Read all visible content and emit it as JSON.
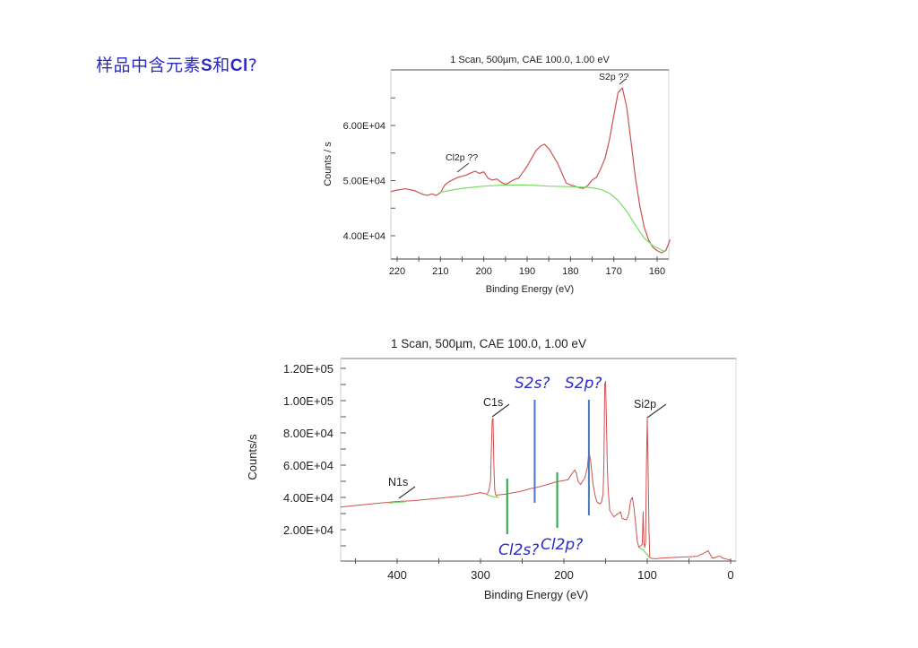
{
  "page": {
    "title_prefix": "样品中含元素",
    "title_s": "S",
    "title_mid": "和",
    "title_cl": "Cl",
    "title_suffix": "?"
  },
  "colors": {
    "title": "#2b2bc8",
    "spectrum": "#d05050",
    "background_fit": "#77dd66",
    "annotation_blue_line": "#4a78b8",
    "annotation_green_line": "#22aa44",
    "annotation_text": "#2a2ad0"
  },
  "chart_data": [
    {
      "type": "line",
      "title": "1 Scan,  500µm,  CAE 100.0,  1.00 eV",
      "xlabel": "Binding Energy (eV)",
      "ylabel": "Counts / s",
      "xlim": [
        221.5,
        157
      ],
      "ylim": [
        36000,
        69000
      ],
      "x_ticks": [
        220,
        210,
        200,
        190,
        180,
        170,
        160
      ],
      "y_ticks": [
        "4.00E+04",
        "5.00E+04",
        "6.00E+04"
      ],
      "grid": false,
      "annotations": [
        {
          "label": "Cl2p ??",
          "x": 203
        },
        {
          "label": "S2p ??",
          "x": 168
        }
      ],
      "series": [
        {
          "name": "spectrum",
          "color": "#d05050",
          "x": [
            221.5,
            220,
            218,
            216,
            215,
            214,
            213,
            212,
            211,
            210,
            209,
            208,
            206,
            204,
            203,
            202,
            201,
            200,
            199,
            198,
            197,
            196,
            195,
            194,
            193,
            192,
            191,
            190,
            189,
            188,
            187,
            186,
            185,
            184,
            183,
            182,
            181,
            180,
            179,
            178,
            177,
            176,
            175,
            174,
            173,
            172,
            171,
            170,
            169,
            168,
            167,
            166,
            165,
            164,
            163,
            162,
            161,
            160,
            159,
            158,
            157
          ],
          "y": [
            48000,
            48300,
            48500,
            48200,
            47800,
            47500,
            47300,
            47600,
            47300,
            47800,
            49200,
            49800,
            50600,
            51000,
            51400,
            51700,
            51300,
            51600,
            50400,
            50100,
            50300,
            49700,
            49300,
            49700,
            50200,
            50400,
            51500,
            52600,
            54000,
            55400,
            56200,
            56600,
            55800,
            54500,
            53200,
            51400,
            49600,
            49200,
            49000,
            48700,
            48600,
            49100,
            50100,
            50600,
            52200,
            54100,
            57400,
            61800,
            66000,
            66800,
            63200,
            56900,
            50500,
            45400,
            41600,
            39300,
            37900,
            37300,
            36900,
            37300,
            39300
          ]
        },
        {
          "name": "background",
          "color": "#77dd66",
          "x": [
            210,
            205,
            200,
            195,
            190,
            185,
            180,
            177,
            175,
            173,
            171,
            169,
            167,
            165,
            163,
            161,
            159,
            158
          ],
          "y": [
            47900,
            48600,
            49000,
            49200,
            49200,
            49000,
            48900,
            48800,
            48700,
            48400,
            47700,
            46400,
            44400,
            41900,
            39600,
            38200,
            37400,
            37100
          ]
        }
      ]
    },
    {
      "type": "line",
      "title": "1 Scan,  500µm,  CAE 100.0,  1.00 eV",
      "xlabel": "Binding Energy (eV)",
      "ylabel": "Counts/s",
      "xlim": [
        468,
        0
      ],
      "ylim": [
        0,
        126000
      ],
      "x_ticks": [
        400,
        300,
        200,
        100,
        0
      ],
      "y_ticks": [
        "2.00E+04",
        "4.00E+04",
        "6.00E+04",
        "8.00E+04",
        "1.00E+05",
        "1.20E+05"
      ],
      "grid": false,
      "peak_labels": [
        {
          "label": "N1s",
          "x": 400
        },
        {
          "label": "C1s",
          "x": 285
        },
        {
          "label": "Si2p",
          "x": 100
        }
      ],
      "annotations": [
        {
          "label": "S2s?",
          "x": 235,
          "color": "#4a78b8"
        },
        {
          "label": "S2p?",
          "x": 170,
          "color": "#4a78b8"
        },
        {
          "label": "Cl2s?",
          "x": 268,
          "color": "#22aa44"
        },
        {
          "label": "Cl2p?",
          "x": 208,
          "color": "#22aa44"
        }
      ],
      "series": [
        {
          "name": "survey spectrum",
          "color": "#d05050",
          "x": [
            468,
            450,
            420,
            400,
            380,
            350,
            320,
            300,
            292,
            290,
            288,
            287,
            286,
            285,
            284,
            283,
            282,
            281,
            280,
            270,
            260,
            250,
            240,
            230,
            220,
            210,
            200,
            195,
            190,
            187,
            185,
            183,
            180,
            175,
            172,
            170,
            168,
            165,
            162,
            160,
            157,
            155,
            153,
            152,
            151,
            150,
            149,
            148,
            147,
            145,
            140,
            135,
            132,
            130,
            125,
            122,
            120,
            118,
            116,
            114,
            112,
            110,
            108,
            106,
            105,
            104,
            103,
            102,
            101,
            100,
            99,
            98,
            97,
            95,
            90,
            80,
            60,
            40,
            30,
            27,
            25,
            22,
            20,
            15,
            12,
            10,
            5,
            0
          ],
          "y": [
            34000,
            35000,
            36500,
            37500,
            38000,
            39500,
            41000,
            43000,
            42000,
            44000,
            50000,
            70000,
            88000,
            89000,
            60000,
            45000,
            42000,
            41000,
            41500,
            42000,
            43000,
            44000,
            45500,
            46500,
            48000,
            49500,
            50500,
            51000,
            55000,
            57000,
            55000,
            50000,
            48000,
            52000,
            58000,
            68000,
            63000,
            48000,
            40000,
            37000,
            36000,
            37000,
            42000,
            60000,
            110000,
            112000,
            90000,
            60000,
            46000,
            32000,
            28000,
            30000,
            31000,
            27000,
            26000,
            30000,
            38000,
            40000,
            34000,
            24000,
            13000,
            9000,
            10000,
            11000,
            31000,
            12000,
            9000,
            12000,
            60000,
            89000,
            60000,
            20000,
            3000,
            2200,
            2000,
            2500,
            3000,
            3500,
            6000,
            7000,
            5000,
            2500,
            2500,
            3500,
            3500,
            2500,
            1800,
            1000
          ]
        },
        {
          "name": "background",
          "color": "#77dd66",
          "segments": [
            {
              "x": [
                410,
                400,
                390
              ],
              "y": [
                36500,
                37000,
                37300
              ]
            },
            {
              "x": [
                292,
                285,
                278
              ],
              "y": [
                41500,
                40500,
                40000
              ]
            },
            {
              "x": [
                110,
                105,
                100,
                97
              ],
              "y": [
                9000,
                7500,
                4500,
                2500
              ]
            }
          ]
        }
      ]
    }
  ]
}
